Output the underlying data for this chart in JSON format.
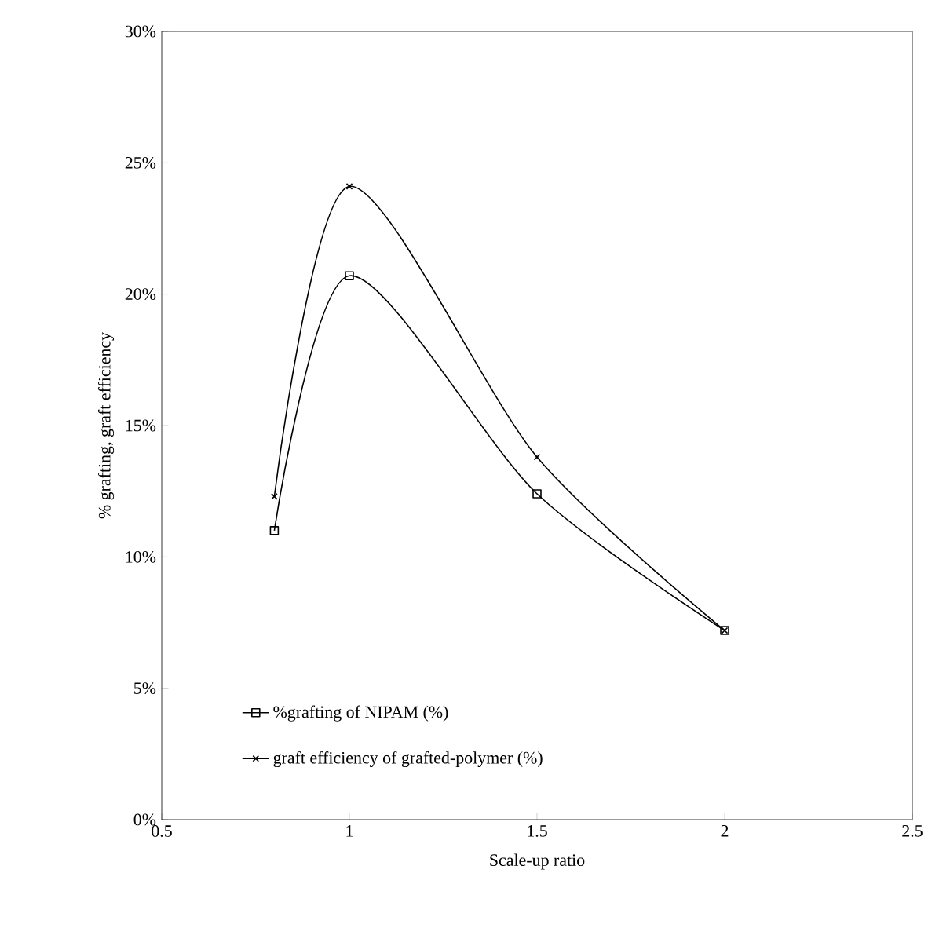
{
  "chart_data": {
    "type": "line",
    "xlabel": "Scale-up ratio",
    "ylabel": "% grafting, graft efficiency",
    "x": [
      0.8,
      1,
      1.5,
      2
    ],
    "series": [
      {
        "name": "%grafting of NIPAM (%)",
        "color": "#000000",
        "marker": "square",
        "values": [
          11.0,
          20.7,
          12.4,
          7.2
        ]
      },
      {
        "name": "graft efficiency of grafted-polymer (%)",
        "color": "#000000",
        "marker": "cross",
        "values": [
          12.3,
          24.1,
          13.8,
          7.2
        ]
      }
    ],
    "xlim": [
      0.5,
      2.5
    ],
    "xticks": [
      0.5,
      1,
      1.5,
      2,
      2.5
    ],
    "ylim": [
      0,
      30
    ],
    "yticks": [
      {
        "value": 0,
        "label": "0%"
      },
      {
        "value": 5,
        "label": "5%"
      },
      {
        "value": 10,
        "label": "10%"
      },
      {
        "value": 15,
        "label": "15%"
      },
      {
        "value": 20,
        "label": "20%"
      },
      {
        "value": 25,
        "label": "25%"
      },
      {
        "value": 30,
        "label": "30%"
      }
    ],
    "grid": false,
    "legend": "bottom left",
    "line_style": "solid"
  }
}
